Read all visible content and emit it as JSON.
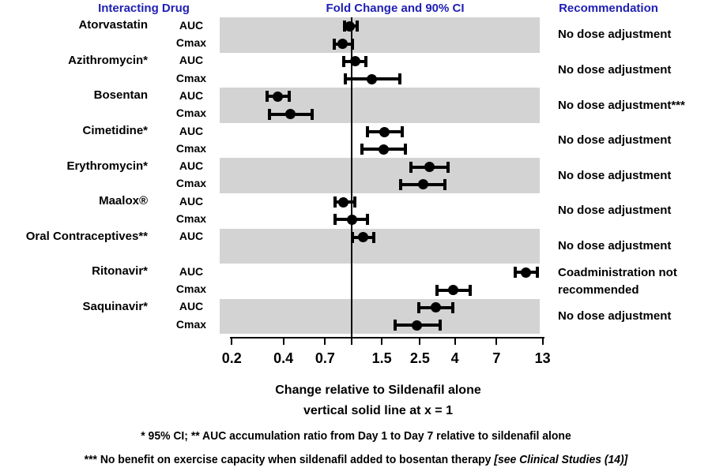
{
  "title_headers": {
    "interacting_drug": "Interacting Drug",
    "fold_change": "Fold Change and 90% CI",
    "recommendation": "Recommendation"
  },
  "colors": {
    "header_blue": "#1F1FB4",
    "band_gray": "#D3D3D3",
    "marker_black": "#000000"
  },
  "chart_data": {
    "type": "forest",
    "x_scale": "log",
    "xlim": [
      0.2,
      13
    ],
    "x_tick_values": [
      0.2,
      0.4,
      0.7,
      1.5,
      2.5,
      4,
      7,
      13
    ],
    "x_tick_labels": [
      "0.2",
      "0.4",
      "0.7",
      "1.5",
      "2.5",
      "4",
      "7",
      "13"
    ],
    "unlabeled_tick_at": 1,
    "reference_line_x": 1,
    "ci_level_default": "90% CI",
    "groups": [
      {
        "drug": "Atorvastatin",
        "shaded": true,
        "recommendation": "No dose adjustment",
        "rows": [
          {
            "param": "AUC",
            "value": 0.97,
            "lo": 0.91,
            "hi": 1.08
          },
          {
            "param": "Cmax",
            "value": 0.88,
            "lo": 0.79,
            "hi": 1.01
          }
        ]
      },
      {
        "drug": "Azithromycin*",
        "shaded": false,
        "recommendation": "No dose adjustment",
        "rows": [
          {
            "param": "AUC",
            "value": 1.05,
            "lo": 0.9,
            "hi": 1.21
          },
          {
            "param": "Cmax",
            "value": 1.31,
            "lo": 0.92,
            "hi": 1.91
          }
        ]
      },
      {
        "drug": "Bosentan",
        "shaded": true,
        "recommendation": "No dose adjustment***",
        "rows": [
          {
            "param": "AUC",
            "value": 0.37,
            "lo": 0.32,
            "hi": 0.43
          },
          {
            "param": "Cmax",
            "value": 0.44,
            "lo": 0.33,
            "hi": 0.59
          }
        ]
      },
      {
        "drug": "Cimetidine*",
        "shaded": false,
        "recommendation": "No dose adjustment",
        "rows": [
          {
            "param": "AUC",
            "value": 1.56,
            "lo": 1.24,
            "hi": 1.97
          },
          {
            "param": "Cmax",
            "value": 1.53,
            "lo": 1.15,
            "hi": 2.06
          }
        ]
      },
      {
        "drug": "Erythromycin*",
        "shaded": true,
        "recommendation": "No dose adjustment",
        "rows": [
          {
            "param": "AUC",
            "value": 2.84,
            "lo": 2.22,
            "hi": 3.63
          },
          {
            "param": "Cmax",
            "value": 2.6,
            "lo": 1.92,
            "hi": 3.51
          }
        ]
      },
      {
        "drug": "Maalox®",
        "shaded": false,
        "recommendation": "No dose adjustment",
        "rows": [
          {
            "param": "AUC",
            "value": 0.89,
            "lo": 0.8,
            "hi": 1.04
          },
          {
            "param": "Cmax",
            "value": 1.0,
            "lo": 0.8,
            "hi": 1.24
          }
        ]
      },
      {
        "drug": "Oral Contraceptives**",
        "shaded": true,
        "recommendation": "No dose adjustment",
        "rows": [
          {
            "param": "AUC",
            "value": 1.16,
            "lo": 1.01,
            "hi": 1.34
          },
          {
            "param": "",
            "value": null,
            "lo": null,
            "hi": null
          }
        ]
      },
      {
        "drug": "Ritonavir*",
        "shaded": false,
        "recommendation": "Coadministration not recommended",
        "rows": [
          {
            "param": "AUC",
            "value": 10.4,
            "lo": 8.97,
            "hi": 12.1
          },
          {
            "param": "Cmax",
            "value": 3.9,
            "lo": 3.13,
            "hi": 4.92
          }
        ]
      },
      {
        "drug": "Saquinavir*",
        "shaded": true,
        "recommendation": "No dose adjustment",
        "rows": [
          {
            "param": "AUC",
            "value": 3.08,
            "lo": 2.46,
            "hi": 3.9
          },
          {
            "param": "Cmax",
            "value": 2.4,
            "lo": 1.79,
            "hi": 3.27
          }
        ]
      }
    ],
    "xlabel_line1": "Change relative to Sildenafil alone",
    "xlabel_line2": "vertical solid line at x = 1",
    "legend_position": "none",
    "grid": false
  },
  "footnotes": {
    "line1": "* 95% CI;  ** AUC accumulation ratio from Day 1 to Day 7 relative to sildenafil alone",
    "line2_main": "*** No benefit on exercise capacity when sildenafil added to bosentan therapy ",
    "line2_italic": "[see Clinical Studies (14)]"
  }
}
